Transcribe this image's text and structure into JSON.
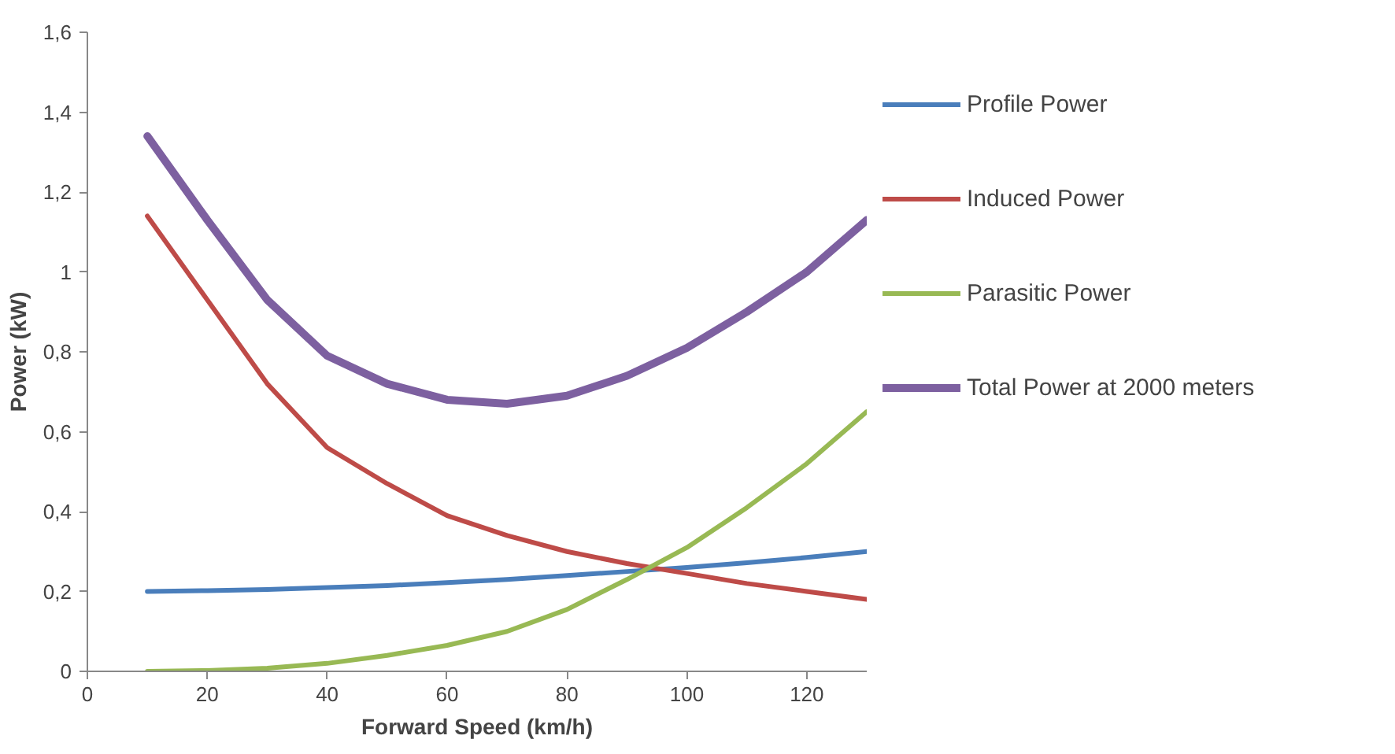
{
  "chart_data": {
    "type": "line",
    "xlabel": "Forward Speed (km/h)",
    "ylabel": "Power (kW)",
    "x": [
      10,
      20,
      30,
      40,
      50,
      60,
      70,
      80,
      90,
      100,
      110,
      120,
      130
    ],
    "xlim": [
      0,
      130
    ],
    "xticks": [
      0,
      20,
      40,
      60,
      80,
      100,
      120
    ],
    "ylim": [
      0,
      1.6
    ],
    "yticks": [
      0,
      {
        "value": 0.2,
        "label": "0,2"
      },
      {
        "value": 0.4,
        "label": "0,4"
      },
      {
        "value": 0.6,
        "label": "0,6"
      },
      {
        "value": 0.8,
        "label": "0,8"
      },
      1,
      {
        "value": 1.2,
        "label": "1,2"
      },
      {
        "value": 1.4,
        "label": "1,4"
      },
      {
        "value": 1.6,
        "label": "1,6"
      }
    ],
    "grid": false,
    "legend": "right",
    "marker": "none",
    "line_style": "solid",
    "series": [
      {
        "name": "Profile Power",
        "color": "#4a7ebb",
        "values": [
          0.2,
          0.202,
          0.205,
          0.21,
          0.215,
          0.222,
          0.23,
          0.24,
          0.25,
          0.26,
          0.272,
          0.285,
          0.3
        ]
      },
      {
        "name": "Induced Power",
        "color": "#be4b48",
        "values": [
          1.14,
          0.93,
          0.72,
          0.56,
          0.47,
          0.39,
          0.34,
          0.3,
          0.27,
          0.245,
          0.22,
          0.2,
          0.18
        ]
      },
      {
        "name": "Parasitic Power",
        "color": "#98b954",
        "values": [
          0,
          0.002,
          0.008,
          0.02,
          0.04,
          0.065,
          0.1,
          0.155,
          0.23,
          0.31,
          0.41,
          0.52,
          0.65
        ]
      },
      {
        "name": "Total Power at 2000 meters",
        "color": "#7d60a0",
        "values": [
          1.34,
          1.13,
          0.93,
          0.79,
          0.72,
          0.68,
          0.67,
          0.69,
          0.74,
          0.81,
          0.9,
          1.0,
          1.13
        ]
      }
    ]
  }
}
